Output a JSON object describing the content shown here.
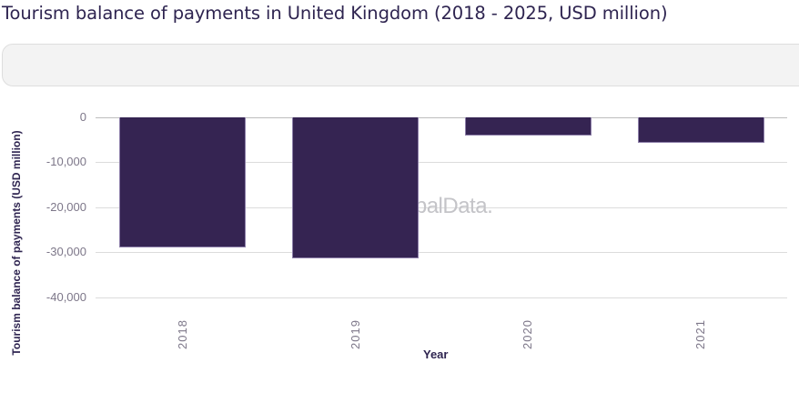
{
  "title": "Tourism balance of payments in United Kingdom (2018 - 2025, USD million)",
  "watermark": "GlobalData.",
  "colors": {
    "bar": "#352452",
    "title": "#2e2450",
    "grid": "#dcdcdc"
  },
  "chart_data": {
    "type": "bar",
    "title": "Tourism balance of payments in United Kingdom (2018 - 2025, USD million)",
    "xlabel": "Year",
    "ylabel": "Tourism balance of payments (USD million)",
    "categories": [
      "2018",
      "2019",
      "2020",
      "2021"
    ],
    "values": [
      -28900,
      -31300,
      -4000,
      -5600
    ],
    "yticks": [
      "0",
      "-10,000",
      "-20,000",
      "-30,000",
      "-40,000"
    ],
    "ylim": [
      -40000,
      0
    ],
    "grid": true,
    "legend": null
  }
}
